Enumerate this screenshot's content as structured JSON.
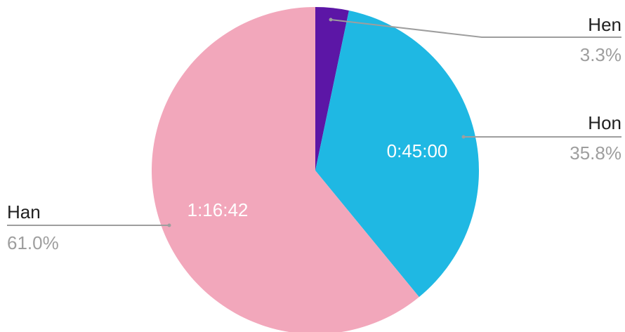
{
  "chart_data": {
    "type": "pie",
    "start_angle_deg": 0,
    "direction": "clockwise",
    "slices": [
      {
        "name": "Hen",
        "percent": 3.3,
        "percent_label": "3.3%",
        "value_label": "",
        "color": "#5c16a6"
      },
      {
        "name": "Hon",
        "percent": 35.8,
        "percent_label": "35.8%",
        "value_label": "0:45:00",
        "color": "#1fb8e3"
      },
      {
        "name": "Han",
        "percent": 61.0,
        "percent_label": "61.0%",
        "value_label": "1:16:42",
        "color": "#f2a7bb"
      }
    ],
    "legend": "outside-labels"
  }
}
